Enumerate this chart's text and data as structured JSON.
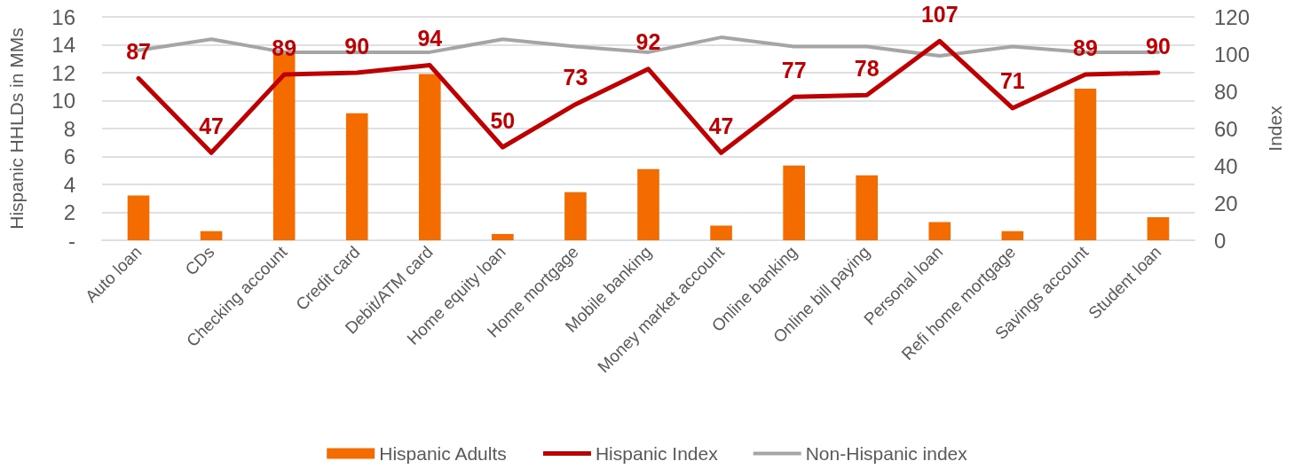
{
  "chart_data": {
    "type": "bar",
    "ylabel": "Hispanic HHLDs in MMs",
    "y2label": "Index",
    "categories": [
      "Auto loan",
      "CDs",
      "Checking account",
      "Credit card",
      "Debit/ATM card",
      "Home equity loan",
      "Home mortgage",
      "Mobile banking",
      "Money market account",
      "Online banking",
      "Online bill paying",
      "Personal loan",
      "Refi home mortgage",
      "Savings account",
      "Student loan"
    ],
    "series": [
      {
        "name": "Hispanic Adults",
        "color": "#f46b00",
        "values": [
          3.2,
          0.65,
          13.6,
          9.1,
          11.9,
          0.45,
          3.45,
          5.1,
          1.05,
          5.35,
          4.65,
          1.3,
          0.65,
          10.85,
          1.65
        ]
      },
      {
        "name": "Hispanic Index",
        "type": "line",
        "axis": "y2",
        "color": "#c00000",
        "values": [
          87,
          47,
          89,
          90,
          94,
          50,
          73,
          92,
          47,
          77,
          78,
          107,
          71,
          89,
          90
        ],
        "value_labels": [
          "87",
          "47",
          "89",
          "90",
          "94",
          "50",
          "73",
          "92",
          "47",
          "77",
          "78",
          "107",
          "71",
          "89",
          "90"
        ]
      },
      {
        "name": "Non-Hispanic index",
        "type": "line",
        "axis": "y2",
        "color": "#a5a5a5",
        "values": [
          102,
          108,
          101,
          101,
          101,
          108,
          104,
          101,
          109,
          104,
          104,
          99,
          104,
          101,
          101
        ]
      }
    ],
    "ylim": [
      0,
      16
    ],
    "yticks": [
      {
        "value": 0,
        "label": "-"
      },
      2,
      4,
      6,
      8,
      10,
      12,
      14,
      16
    ],
    "y2lim": [
      0,
      120
    ],
    "y2ticks": [
      0,
      20,
      40,
      60,
      80,
      100,
      120
    ],
    "grid": "y",
    "legend": "bottom",
    "marker": "none",
    "line_style": "solid"
  }
}
